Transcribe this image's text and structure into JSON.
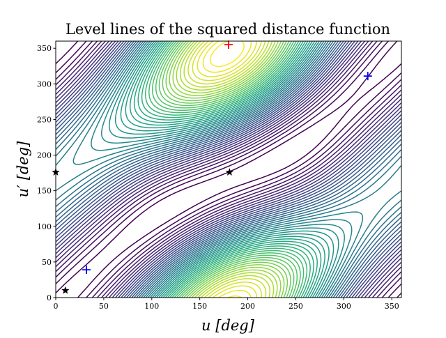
{
  "chart_data": {
    "type": "contour",
    "title": "Level lines of the squared distance function",
    "xlabel": "u [deg]",
    "ylabel": "u′ [deg]",
    "xlim": [
      0,
      360
    ],
    "ylim": [
      0,
      360
    ],
    "xticks": [
      "0",
      "50",
      "100",
      "150",
      "200",
      "250",
      "300",
      "350"
    ],
    "yticks": [
      "0",
      "50",
      "100",
      "150",
      "200",
      "250",
      "300",
      "350"
    ],
    "colormap": "viridis",
    "levels": 50,
    "markers": [
      {
        "type": "plus",
        "color": "#ff0000",
        "u": 180,
        "u_prime": 355
      },
      {
        "type": "plus",
        "color": "#0000ff",
        "u": 32,
        "u_prime": 39
      },
      {
        "type": "plus",
        "color": "#0000ff",
        "u": 325,
        "u_prime": 311
      },
      {
        "type": "star",
        "color": "#000000",
        "u": 10,
        "u_prime": 10
      },
      {
        "type": "star",
        "color": "#000000",
        "u": 0,
        "u_prime": 176
      },
      {
        "type": "star",
        "color": "#000000",
        "u": 181,
        "u_prime": 176
      }
    ]
  }
}
